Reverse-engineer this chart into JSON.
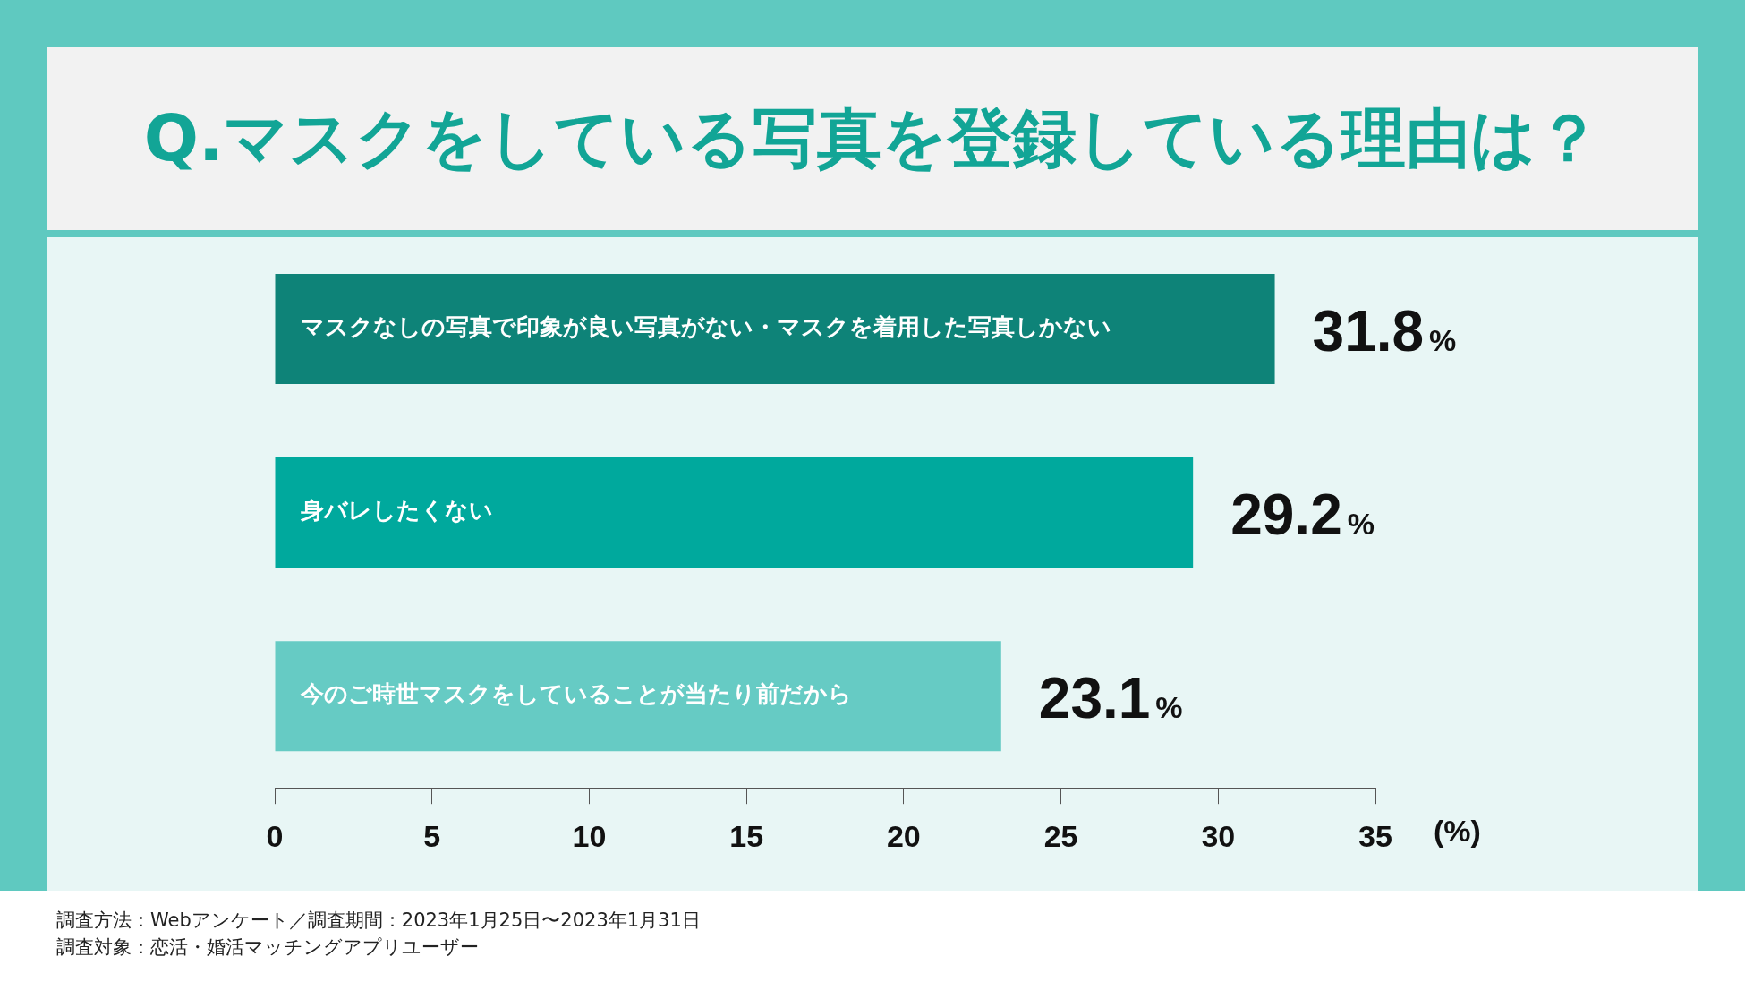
{
  "chart_data": {
    "type": "bar",
    "orientation": "horizontal",
    "title": "Q.マスクをしている写真を登録している理由は？",
    "categories": [
      "マスクなしの写真で印象が良い写真がない・マスクを着用した写真しかない",
      "身バレしたくない",
      "今のご時世マスクをしていることが当たり前だから"
    ],
    "values": [
      31.8,
      29.2,
      23.1
    ],
    "colors": [
      "#0e8378",
      "#00a99d",
      "#66cbc4"
    ],
    "value_labels": [
      "31.8%",
      "29.2%",
      "23.1%"
    ],
    "xlabel": "(%)",
    "xlim": [
      0,
      35
    ],
    "xticks": [
      0,
      5,
      10,
      15,
      20,
      25,
      30,
      35
    ],
    "grid": false,
    "legend": false,
    "annotations": [
      "調査方法：Webアンケート／調査期間：2023年1月25日〜2023年1月31日",
      "調査対象：恋活・婚活マッチングアプリユーザー"
    ]
  }
}
